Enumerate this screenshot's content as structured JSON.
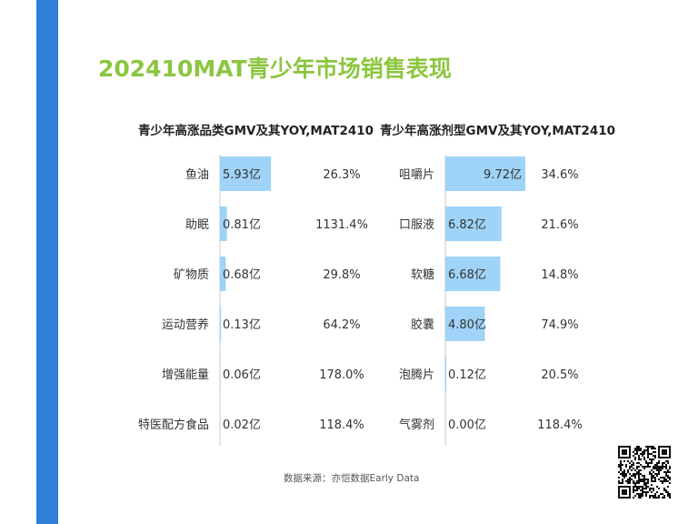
{
  "title": "202410MAT青少年市场销售表现",
  "source": "数据来源：亦恺数据Early Data",
  "colors": {
    "accent": "#2f7ed8",
    "title": "#8cc63f",
    "bar": "#9fd3f7",
    "axis": "#c9c9c9"
  },
  "chart_data": [
    {
      "type": "bar",
      "orientation": "horizontal",
      "title": "青少年高涨品类GMV及其YOY,MAT2410",
      "categories": [
        "鱼油",
        "助眠",
        "矿物质",
        "运动营养",
        "增强能量",
        "特医配方食品"
      ],
      "values": [
        5.93,
        0.81,
        0.68,
        0.13,
        0.06,
        0.02
      ],
      "value_labels": [
        "5.93亿",
        "0.81亿",
        "0.68亿",
        "0.13亿",
        "0.06亿",
        "0.02亿"
      ],
      "yoy": [
        "26.3%",
        "1131.4%",
        "29.8%",
        "64.2%",
        "178.0%",
        "118.4%"
      ],
      "unit": "亿",
      "xlim": [
        0,
        9.72
      ]
    },
    {
      "type": "bar",
      "orientation": "horizontal",
      "title": "青少年高涨剂型GMV及其YOY,MAT2410",
      "categories": [
        "咀嚼片",
        "口服液",
        "软糖",
        "胶囊",
        "泡腾片",
        "气雾剂"
      ],
      "values": [
        9.72,
        6.82,
        6.68,
        4.8,
        0.12,
        0.0
      ],
      "value_labels": [
        "9.72亿",
        "6.82亿",
        "6.68亿",
        "4.80亿",
        "0.12亿",
        "0.00亿"
      ],
      "yoy": [
        "34.6%",
        "21.6%",
        "14.8%",
        "74.9%",
        "20.5%",
        "118.4%"
      ],
      "unit": "亿",
      "xlim": [
        0,
        9.72
      ]
    }
  ]
}
